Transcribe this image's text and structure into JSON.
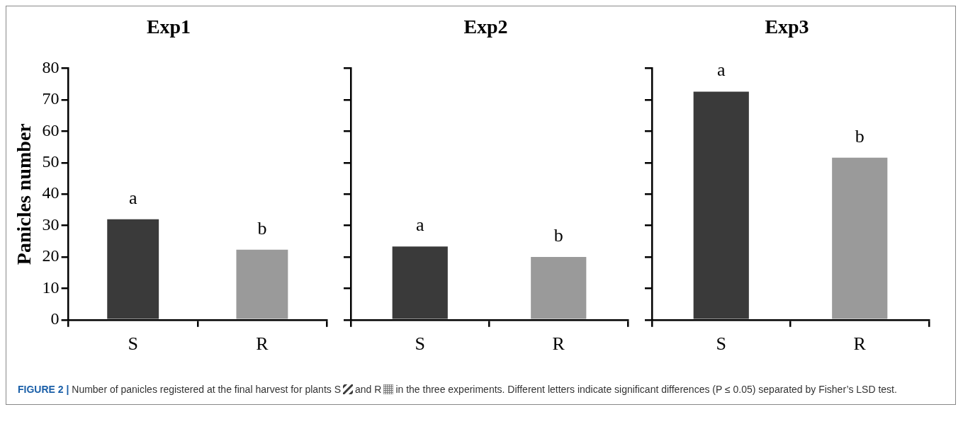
{
  "chart_data": [
    {
      "type": "bar",
      "title": "Exp1",
      "ylabel": "Panicles number",
      "categories": [
        "S",
        "R"
      ],
      "values": [
        32.0,
        22.3
      ],
      "colors": [
        "#3a3a3a",
        "#9a9a9a"
      ],
      "value_labels": [
        "a",
        "b"
      ],
      "ylim": [
        0,
        80
      ],
      "yticks": [
        0,
        10,
        20,
        30,
        40,
        50,
        60,
        70,
        80
      ],
      "grid": false,
      "annotations": [
        "FIGURE 2 |",
        "Number of panicles registered at the final harvest for plants S",
        "and R",
        "in the three experiments. Different letters indicate significant differences (P ≤ 0.05) separated by Fisher’s LSD test."
      ]
    },
    {
      "type": "bar",
      "title": "Exp2",
      "categories": [
        "S",
        "R"
      ],
      "values": [
        23.3,
        20.0
      ],
      "colors": [
        "#3a3a3a",
        "#9a9a9a"
      ],
      "value_labels": [
        "a",
        "b"
      ],
      "ylim": [
        0,
        80
      ],
      "yticks": [
        0,
        10,
        20,
        30,
        40,
        50,
        60,
        70,
        80
      ],
      "tick_labels": "x",
      "grid": false
    },
    {
      "type": "bar",
      "title": "Exp3",
      "categories": [
        "S",
        "R"
      ],
      "values": [
        72.6,
        51.6
      ],
      "colors": [
        "#3a3a3a",
        "#9a9a9a"
      ],
      "value_labels": [
        "a",
        "b"
      ],
      "ylim": [
        0,
        80
      ],
      "yticks": [
        0,
        10,
        20,
        30,
        40,
        50,
        60,
        70,
        80
      ],
      "tick_labels": "x",
      "grid": false
    }
  ]
}
